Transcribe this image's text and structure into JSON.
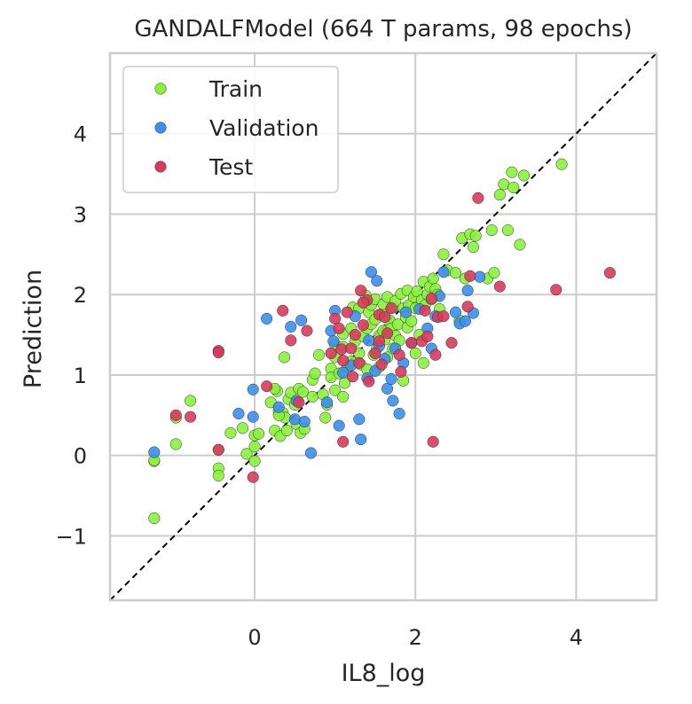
{
  "chart_data": {
    "type": "scatter",
    "title": "GANDALFModel (664 T params, 98 epochs)",
    "xlabel": "IL8_log",
    "ylabel": "Prediction",
    "xlim": [
      -1.8,
      5.0
    ],
    "ylim": [
      -1.8,
      5.0
    ],
    "x_ticks": [
      0,
      2,
      4
    ],
    "y_ticks": [
      -1,
      0,
      1,
      2,
      3,
      4
    ],
    "grid": true,
    "legend_position": "upper-left",
    "reference_line": {
      "style": "dashed",
      "color": "#000000",
      "from": [
        -1.8,
        -1.8
      ],
      "to": [
        5.0,
        5.0
      ]
    },
    "series": [
      {
        "name": "Train",
        "color": "#88f23a",
        "points": [
          [
            -1.25,
            -0.78
          ],
          [
            -1.25,
            -0.07
          ],
          [
            -1.25,
            -0.06
          ],
          [
            -0.98,
            0.47
          ],
          [
            -0.98,
            0.14
          ],
          [
            -0.8,
            0.68
          ],
          [
            -0.45,
            0.07
          ],
          [
            -0.45,
            -0.16
          ],
          [
            -0.45,
            -0.25
          ],
          [
            -0.3,
            0.28
          ],
          [
            -0.15,
            0.34
          ],
          [
            -0.1,
            0.02
          ],
          [
            0.0,
            0.25
          ],
          [
            0.0,
            0.11
          ],
          [
            0.0,
            -0.07
          ],
          [
            0.05,
            0.27
          ],
          [
            0.2,
            0.66
          ],
          [
            0.25,
            0.31
          ],
          [
            0.28,
            0.8
          ],
          [
            0.3,
            0.55
          ],
          [
            0.32,
            0.24
          ],
          [
            0.35,
            0.53
          ],
          [
            0.37,
            1.22
          ],
          [
            0.38,
            0.47
          ],
          [
            0.4,
            0.31
          ],
          [
            0.42,
            0.7
          ],
          [
            0.45,
            0.78
          ],
          [
            0.5,
            0.63
          ],
          [
            0.52,
            0.39
          ],
          [
            0.55,
            0.83
          ],
          [
            0.57,
            0.28
          ],
          [
            0.6,
            0.79
          ],
          [
            0.72,
            0.94
          ],
          [
            0.72,
            0.73
          ],
          [
            0.75,
            1.02
          ],
          [
            0.8,
            1.25
          ],
          [
            0.85,
            0.76
          ],
          [
            0.88,
            0.47
          ],
          [
            0.9,
            0.63
          ],
          [
            0.95,
            1.08
          ],
          [
            0.95,
            0.97
          ],
          [
            1.0,
            1.22
          ],
          [
            1.0,
            1.38
          ],
          [
            1.0,
            0.81
          ],
          [
            1.05,
            1.02
          ],
          [
            1.1,
            1.35
          ],
          [
            1.1,
            1.51
          ],
          [
            1.1,
            0.73
          ],
          [
            1.15,
            1.1
          ],
          [
            1.2,
            1.17
          ],
          [
            1.2,
            1.58
          ],
          [
            1.22,
            1.84
          ],
          [
            1.25,
            1.42
          ],
          [
            1.3,
            1.27
          ],
          [
            1.3,
            1.83
          ],
          [
            1.32,
            1.13
          ],
          [
            1.35,
            1.48
          ],
          [
            1.38,
            1.99
          ],
          [
            1.4,
            1.58
          ],
          [
            1.4,
            1.07
          ],
          [
            1.42,
            1.78
          ],
          [
            1.45,
            1.87
          ],
          [
            1.45,
            1.63
          ],
          [
            1.48,
            1.25
          ],
          [
            1.5,
            1.69
          ],
          [
            1.5,
            1.94
          ],
          [
            1.52,
            1.33
          ],
          [
            1.55,
            1.49
          ],
          [
            1.55,
            1.1
          ],
          [
            1.58,
            1.76
          ],
          [
            1.6,
            1.88
          ],
          [
            1.6,
            1.55
          ],
          [
            1.62,
            1.44
          ],
          [
            1.65,
            1.97
          ],
          [
            1.65,
            1.22
          ],
          [
            1.68,
            1.68
          ],
          [
            1.7,
            1.58
          ],
          [
            1.72,
            1.84
          ],
          [
            1.72,
            1.33
          ],
          [
            1.75,
            1.92
          ],
          [
            1.75,
            1.49
          ],
          [
            1.78,
            1.63
          ],
          [
            1.8,
            1.43
          ],
          [
            1.82,
            2.01
          ],
          [
            1.85,
            0.93
          ],
          [
            1.85,
            1.83
          ],
          [
            1.88,
            1.72
          ],
          [
            1.9,
            1.59
          ],
          [
            1.9,
            2.05
          ],
          [
            1.92,
            1.87
          ],
          [
            1.95,
            1.67
          ],
          [
            1.98,
            1.97
          ],
          [
            2.0,
            1.83
          ],
          [
            2.0,
            1.27
          ],
          [
            2.02,
            2.04
          ],
          [
            2.05,
            1.5
          ],
          [
            2.08,
            1.93
          ],
          [
            2.1,
            1.15
          ],
          [
            2.1,
            2.16
          ],
          [
            2.12,
            1.87
          ],
          [
            2.15,
            2.0
          ],
          [
            2.18,
            2.1
          ],
          [
            2.2,
            1.94
          ],
          [
            2.22,
            2.2
          ],
          [
            2.25,
            2.07
          ],
          [
            2.28,
            2.0
          ],
          [
            2.3,
            1.82
          ],
          [
            2.35,
            2.5
          ],
          [
            2.4,
            2.3
          ],
          [
            2.5,
            2.27
          ],
          [
            2.55,
            1.68
          ],
          [
            2.58,
            2.7
          ],
          [
            2.62,
            2.2
          ],
          [
            2.68,
            2.75
          ],
          [
            2.72,
            2.59
          ],
          [
            2.75,
            2.73
          ],
          [
            2.9,
            2.2
          ],
          [
            2.95,
            2.8
          ],
          [
            2.98,
            2.27
          ],
          [
            3.05,
            3.24
          ],
          [
            3.1,
            3.37
          ],
          [
            3.15,
            2.8
          ],
          [
            3.2,
            3.52
          ],
          [
            3.22,
            3.33
          ],
          [
            3.3,
            2.62
          ],
          [
            3.35,
            3.48
          ],
          [
            3.82,
            3.62
          ],
          [
            0.25,
            0.83
          ],
          [
            0.3,
            0.5
          ],
          [
            0.62,
            0.33
          ],
          [
            1.12,
            0.9
          ]
        ]
      },
      {
        "name": "Validation",
        "color": "#3a8ff0",
        "points": [
          [
            -1.25,
            0.04
          ],
          [
            -0.2,
            0.52
          ],
          [
            -0.02,
            0.82
          ],
          [
            -0.02,
            0.48
          ],
          [
            0.15,
            1.7
          ],
          [
            0.3,
            0.6
          ],
          [
            0.45,
            1.6
          ],
          [
            0.5,
            0.45
          ],
          [
            0.52,
            0.68
          ],
          [
            0.58,
            1.68
          ],
          [
            0.62,
            0.42
          ],
          [
            0.7,
            0.03
          ],
          [
            0.9,
            0.66
          ],
          [
            0.95,
            1.55
          ],
          [
            0.98,
            1.42
          ],
          [
            1.0,
            1.8
          ],
          [
            1.05,
            0.37
          ],
          [
            1.1,
            1.03
          ],
          [
            1.2,
            1.12
          ],
          [
            1.25,
            1.73
          ],
          [
            1.3,
            0.45
          ],
          [
            1.32,
            0.2
          ],
          [
            1.4,
            0.96
          ],
          [
            1.42,
            1.43
          ],
          [
            1.45,
            2.28
          ],
          [
            1.5,
            1.05
          ],
          [
            1.52,
            2.17
          ],
          [
            1.55,
            1.36
          ],
          [
            1.62,
            1.2
          ],
          [
            1.65,
            0.83
          ],
          [
            1.7,
            0.95
          ],
          [
            1.72,
            0.68
          ],
          [
            1.75,
            1.33
          ],
          [
            1.8,
            0.52
          ],
          [
            1.85,
            1.15
          ],
          [
            1.88,
            1.78
          ],
          [
            1.95,
            1.4
          ],
          [
            2.05,
            1.82
          ],
          [
            2.15,
            1.58
          ],
          [
            2.2,
            1.33
          ],
          [
            2.25,
            1.73
          ],
          [
            2.3,
            1.98
          ],
          [
            2.35,
            2.28
          ],
          [
            2.5,
            1.78
          ],
          [
            2.55,
            1.64
          ],
          [
            2.62,
            1.67
          ],
          [
            2.65,
            2.05
          ],
          [
            2.72,
            1.77
          ],
          [
            2.8,
            2.22
          ]
        ]
      },
      {
        "name": "Test",
        "color": "#d93a5c",
        "points": [
          [
            -0.98,
            0.5
          ],
          [
            -0.8,
            0.48
          ],
          [
            -0.45,
            1.3
          ],
          [
            -0.45,
            1.28
          ],
          [
            -0.45,
            0.07
          ],
          [
            -0.02,
            -0.27
          ],
          [
            0.15,
            0.86
          ],
          [
            0.35,
            1.8
          ],
          [
            0.45,
            1.43
          ],
          [
            0.55,
            0.66
          ],
          [
            0.65,
            1.55
          ],
          [
            0.95,
            1.27
          ],
          [
            1.0,
            1.7
          ],
          [
            1.05,
            1.58
          ],
          [
            1.08,
            1.32
          ],
          [
            1.1,
            1.18
          ],
          [
            1.1,
            0.17
          ],
          [
            1.15,
            1.78
          ],
          [
            1.2,
            1.33
          ],
          [
            1.22,
            0.98
          ],
          [
            1.25,
            1.5
          ],
          [
            1.3,
            1.15
          ],
          [
            1.32,
            2.05
          ],
          [
            1.35,
            1.62
          ],
          [
            1.4,
            1.93
          ],
          [
            1.42,
            0.92
          ],
          [
            1.5,
            1.27
          ],
          [
            1.55,
            1.75
          ],
          [
            1.58,
            1.13
          ],
          [
            1.62,
            1.72
          ],
          [
            1.65,
            1.52
          ],
          [
            1.7,
            1.83
          ],
          [
            1.8,
            1.25
          ],
          [
            1.82,
            1.04
          ],
          [
            1.95,
            1.4
          ],
          [
            2.08,
            1.42
          ],
          [
            2.12,
            1.8
          ],
          [
            2.15,
            1.48
          ],
          [
            2.2,
            1.95
          ],
          [
            2.22,
            0.17
          ],
          [
            2.25,
            1.25
          ],
          [
            2.28,
            1.72
          ],
          [
            2.35,
            1.73
          ],
          [
            2.45,
            1.4
          ],
          [
            2.65,
            1.85
          ],
          [
            2.68,
            2.23
          ],
          [
            2.78,
            3.2
          ],
          [
            3.05,
            2.1
          ],
          [
            3.75,
            2.06
          ],
          [
            4.42,
            2.27
          ],
          [
            1.55,
            1.42
          ],
          [
            1.35,
            1.9
          ]
        ]
      }
    ]
  }
}
